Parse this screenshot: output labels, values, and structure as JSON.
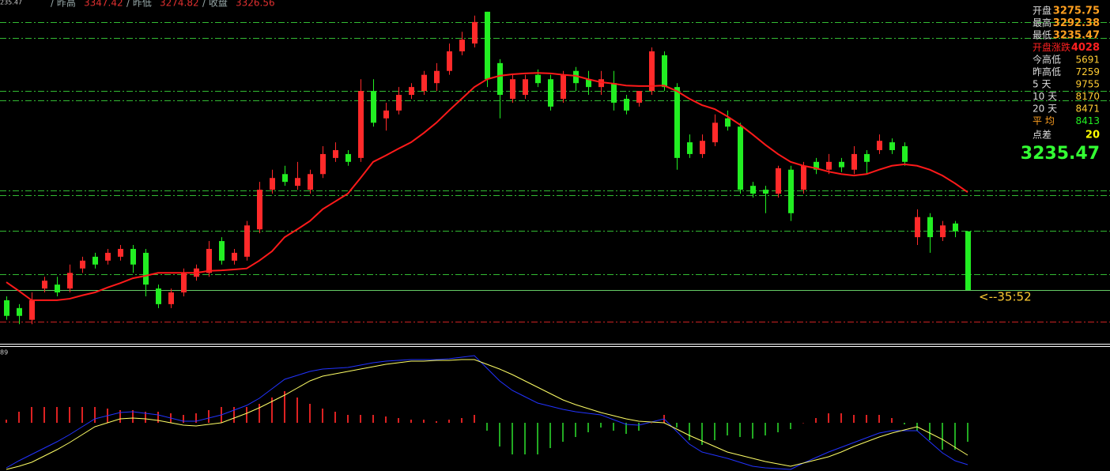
{
  "header": {
    "price": "235.47",
    "items": [
      {
        "label": "/ 昨高",
        "value": 3347.42
      },
      {
        "label": "/ 昨低",
        "value": 3274.82
      },
      {
        "label": "/ 收盘",
        "value": 3326.56
      }
    ]
  },
  "panel": {
    "rows": [
      {
        "label": "开盘",
        "value": 3275.75
      },
      {
        "label": "最高",
        "value": 3292.38
      },
      {
        "label": "最低",
        "value": 3235.47
      },
      {
        "label": "开盘涨跌",
        "value": 4028
      },
      {
        "label": "今高低",
        "value": 5691
      },
      {
        "label": "昨高低",
        "value": 7259
      },
      {
        "label": "5  天",
        "value": 9755
      },
      {
        "label": "10 天",
        "value": 8170
      },
      {
        "label": "20 天",
        "value": 8471
      },
      {
        "label": "平  均",
        "value": 8413
      },
      {
        "label": "点差",
        "value": 20
      }
    ],
    "last": 3235.47,
    "timer": "<--35:52"
  },
  "chart_data": {
    "type": "candlestick",
    "up_color": "#ff2a2a",
    "down_color": "#22ee22",
    "ma_color": "#ff1a1a",
    "ylim": [
      3224.5,
      3294.8
    ],
    "level_lines": [
      {
        "value": 3290.3,
        "color": "#33bb33"
      },
      {
        "value": 3287.0,
        "color": "#33bb33"
      },
      {
        "value": 3276.2,
        "color": "#33bb33"
      },
      {
        "value": 3274.3,
        "color": "#33bb33"
      },
      {
        "value": 3255.9,
        "color": "#33bb33"
      },
      {
        "value": 3254.9,
        "color": "#33bb33"
      },
      {
        "value": 3247.6,
        "color": "#33bb33"
      },
      {
        "value": 3238.8,
        "color": "#33bb33"
      },
      {
        "value": 3235.47,
        "color": "#66cc66"
      },
      {
        "value": 3229.0,
        "color": "#cc2222"
      }
    ],
    "candles": [
      [
        3233.4,
        3234.2,
        3229.4,
        3230.2
      ],
      [
        3231.8,
        3232.6,
        3228.5,
        3230.2
      ],
      [
        3229.4,
        3235.0,
        3228.5,
        3233.4
      ],
      [
        3235.8,
        3238.2,
        3235.0,
        3237.4
      ],
      [
        3236.6,
        3238.2,
        3234.2,
        3235.0
      ],
      [
        3235.8,
        3240.7,
        3235.0,
        3239.0
      ],
      [
        3239.9,
        3242.3,
        3239.0,
        3241.5
      ],
      [
        3242.3,
        3243.1,
        3239.9,
        3240.7
      ],
      [
        3241.5,
        3243.9,
        3240.7,
        3243.1
      ],
      [
        3242.3,
        3244.7,
        3241.5,
        3243.9
      ],
      [
        3243.9,
        3244.7,
        3239.0,
        3240.7
      ],
      [
        3243.1,
        3243.9,
        3234.2,
        3236.6
      ],
      [
        3235.8,
        3236.6,
        3231.8,
        3232.6
      ],
      [
        3232.6,
        3235.8,
        3231.8,
        3235.0
      ],
      [
        3235.0,
        3239.9,
        3234.2,
        3239.0
      ],
      [
        3238.2,
        3240.7,
        3237.4,
        3239.9
      ],
      [
        3239.0,
        3245.5,
        3238.2,
        3243.9
      ],
      [
        3245.5,
        3246.3,
        3240.7,
        3241.5
      ],
      [
        3241.5,
        3243.9,
        3240.7,
        3243.1
      ],
      [
        3242.3,
        3249.6,
        3241.5,
        3248.7
      ],
      [
        3247.9,
        3257.6,
        3247.1,
        3256.0
      ],
      [
        3256.0,
        3260.1,
        3255.2,
        3258.4
      ],
      [
        3259.2,
        3260.9,
        3256.8,
        3257.6
      ],
      [
        3256.8,
        3261.7,
        3256.0,
        3258.4
      ],
      [
        3256.0,
        3260.1,
        3255.2,
        3259.2
      ],
      [
        3259.2,
        3264.9,
        3258.4,
        3263.3
      ],
      [
        3262.5,
        3265.7,
        3261.7,
        3264.1
      ],
      [
        3263.3,
        3264.1,
        3260.9,
        3261.7
      ],
      [
        3262.5,
        3278.6,
        3261.7,
        3276.2
      ],
      [
        3276.2,
        3278.6,
        3268.9,
        3269.7
      ],
      [
        3270.6,
        3273.8,
        3268.1,
        3272.2
      ],
      [
        3272.2,
        3277.0,
        3271.4,
        3275.4
      ],
      [
        3275.4,
        3277.8,
        3274.6,
        3277.0
      ],
      [
        3276.2,
        3280.3,
        3275.4,
        3279.5
      ],
      [
        3277.8,
        3281.9,
        3276.2,
        3280.3
      ],
      [
        3280.3,
        3285.9,
        3279.5,
        3284.3
      ],
      [
        3284.3,
        3288.3,
        3283.5,
        3286.7
      ],
      [
        3285.9,
        3291.6,
        3285.1,
        3290.3
      ],
      [
        3292.4,
        3292.4,
        3277.0,
        3278.6
      ],
      [
        3281.9,
        3282.7,
        3270.6,
        3275.4
      ],
      [
        3274.6,
        3279.5,
        3273.8,
        3278.6
      ],
      [
        3275.4,
        3279.5,
        3274.6,
        3278.6
      ],
      [
        3279.5,
        3280.6,
        3277.0,
        3277.8
      ],
      [
        3278.6,
        3279.5,
        3272.2,
        3273.0
      ],
      [
        3274.6,
        3280.3,
        3273.8,
        3279.5
      ],
      [
        3280.3,
        3281.1,
        3276.2,
        3277.8
      ],
      [
        3278.6,
        3280.3,
        3275.4,
        3277.0
      ],
      [
        3277.0,
        3280.3,
        3275.4,
        3278.6
      ],
      [
        3277.8,
        3280.3,
        3272.2,
        3273.8
      ],
      [
        3274.6,
        3275.4,
        3271.4,
        3272.2
      ],
      [
        3273.8,
        3276.2,
        3273.0,
        3276.2
      ],
      [
        3276.2,
        3285.1,
        3275.4,
        3284.3
      ],
      [
        3283.5,
        3284.3,
        3276.2,
        3277.0
      ],
      [
        3277.0,
        3277.8,
        3260.1,
        3262.5
      ],
      [
        3265.7,
        3267.3,
        3262.5,
        3263.3
      ],
      [
        3263.3,
        3267.3,
        3262.5,
        3266.0
      ],
      [
        3265.7,
        3271.4,
        3264.9,
        3269.7
      ],
      [
        3270.6,
        3272.2,
        3268.1,
        3268.9
      ],
      [
        3268.9,
        3269.7,
        3255.2,
        3256.0
      ],
      [
        3256.8,
        3257.6,
        3254.4,
        3255.2
      ],
      [
        3256.0,
        3256.8,
        3251.2,
        3255.2
      ],
      [
        3255.2,
        3260.9,
        3254.4,
        3260.4
      ],
      [
        3260.1,
        3260.9,
        3249.6,
        3251.2
      ],
      [
        3256.0,
        3261.7,
        3255.2,
        3260.9
      ],
      [
        3261.7,
        3262.5,
        3259.2,
        3260.1
      ],
      [
        3260.1,
        3263.3,
        3259.2,
        3261.7
      ],
      [
        3261.7,
        3262.5,
        3259.6,
        3260.6
      ],
      [
        3260.1,
        3264.9,
        3259.2,
        3263.3
      ],
      [
        3263.3,
        3264.1,
        3259.2,
        3261.7
      ],
      [
        3264.1,
        3267.3,
        3263.3,
        3266.0
      ],
      [
        3265.7,
        3266.5,
        3263.3,
        3264.1
      ],
      [
        3264.9,
        3265.7,
        3260.9,
        3261.7
      ],
      [
        3246.3,
        3252.0,
        3244.7,
        3250.4
      ],
      [
        3250.4,
        3251.2,
        3243.1,
        3246.3
      ],
      [
        3246.3,
        3249.6,
        3245.5,
        3248.7
      ],
      [
        3249.1,
        3249.6,
        3246.3,
        3247.5
      ],
      [
        3247.5,
        3247.5,
        3235.47,
        3235.47
      ]
    ],
    "ma": [
      3237.1,
      3235.3,
      3233.4,
      3233.4,
      3233.4,
      3233.7,
      3234.4,
      3235.0,
      3236.0,
      3236.9,
      3237.9,
      3238.4,
      3239.0,
      3239.0,
      3239.0,
      3239.0,
      3239.4,
      3239.5,
      3239.7,
      3239.9,
      3241.5,
      3243.4,
      3246.3,
      3247.9,
      3249.6,
      3252.0,
      3253.6,
      3255.2,
      3258.4,
      3261.7,
      3263.0,
      3264.4,
      3265.7,
      3267.6,
      3269.7,
      3272.2,
      3274.6,
      3277.0,
      3278.6,
      3279.3,
      3279.6,
      3279.8,
      3279.9,
      3279.8,
      3279.5,
      3279.3,
      3278.6,
      3278.0,
      3277.7,
      3277.3,
      3277.2,
      3277.2,
      3277.3,
      3276.2,
      3274.6,
      3273.3,
      3272.5,
      3271.0,
      3269.3,
      3267.3,
      3265.2,
      3263.3,
      3261.7,
      3260.9,
      3260.4,
      3259.7,
      3259.2,
      3258.9,
      3259.2,
      3260.1,
      3260.9,
      3261.2,
      3260.9,
      3260.1,
      3258.9,
      3257.3,
      3255.5
    ],
    "macd": {
      "label": "89",
      "ylim": [
        -61,
        95
      ],
      "dif_color": "#2233ff",
      "dea_color": "#ffff66",
      "up_color": "#dd2222",
      "down_color": "#22aa22",
      "dif": [
        -57,
        -48,
        -40,
        -32,
        -24,
        -15,
        -5,
        5,
        9,
        13,
        14,
        12,
        10,
        6,
        2,
        2,
        6,
        10,
        16,
        22,
        31,
        43,
        55,
        60,
        65,
        68,
        69,
        70,
        73,
        76,
        78,
        79,
        80,
        80,
        80,
        81,
        83,
        85,
        69,
        53,
        41,
        33,
        25,
        21,
        17,
        14,
        12,
        10,
        4,
        -2,
        -3,
        1,
        5,
        -11,
        -27,
        -37,
        -41,
        -45,
        -50,
        -55,
        -57,
        -58,
        -59,
        -51,
        -44,
        -37,
        -31,
        -25,
        -19,
        -13,
        -10,
        -10,
        -10,
        -24,
        -38,
        -48,
        -53
      ],
      "dea": [
        -59,
        -55,
        -50,
        -42,
        -34,
        -25,
        -15,
        -5,
        0,
        5,
        6,
        5,
        3,
        0,
        -3,
        -4,
        -2,
        0,
        6,
        12,
        19,
        27,
        35,
        44,
        53,
        59,
        62,
        65,
        68,
        71,
        74,
        76,
        78,
        78,
        79,
        79,
        80,
        80,
        74,
        68,
        61,
        53,
        45,
        37,
        29,
        23,
        18,
        13,
        9,
        5,
        2,
        1,
        0,
        -8,
        -16,
        -23,
        -30,
        -37,
        -41,
        -45,
        -49,
        -52,
        -55,
        -51,
        -47,
        -43,
        -37,
        -30,
        -24,
        -18,
        -13,
        -9,
        -5,
        -13,
        -21,
        -31,
        -41
      ],
      "hist": [
        4,
        14,
        20,
        20,
        20,
        20,
        20,
        20,
        18,
        16,
        16,
        14,
        14,
        12,
        10,
        12,
        16,
        20,
        20,
        20,
        24,
        32,
        40,
        32,
        24,
        18,
        14,
        10,
        10,
        10,
        8,
        6,
        4,
        4,
        2,
        4,
        6,
        10,
        -10,
        -30,
        -40,
        -40,
        -40,
        -32,
        -24,
        -18,
        -12,
        -6,
        -10,
        -14,
        -10,
        0,
        10,
        -6,
        -22,
        -28,
        -22,
        -16,
        -18,
        -20,
        -16,
        -12,
        -8,
        0,
        6,
        12,
        12,
        10,
        10,
        10,
        6,
        -2,
        -10,
        -22,
        -34,
        -34,
        -24
      ]
    }
  }
}
